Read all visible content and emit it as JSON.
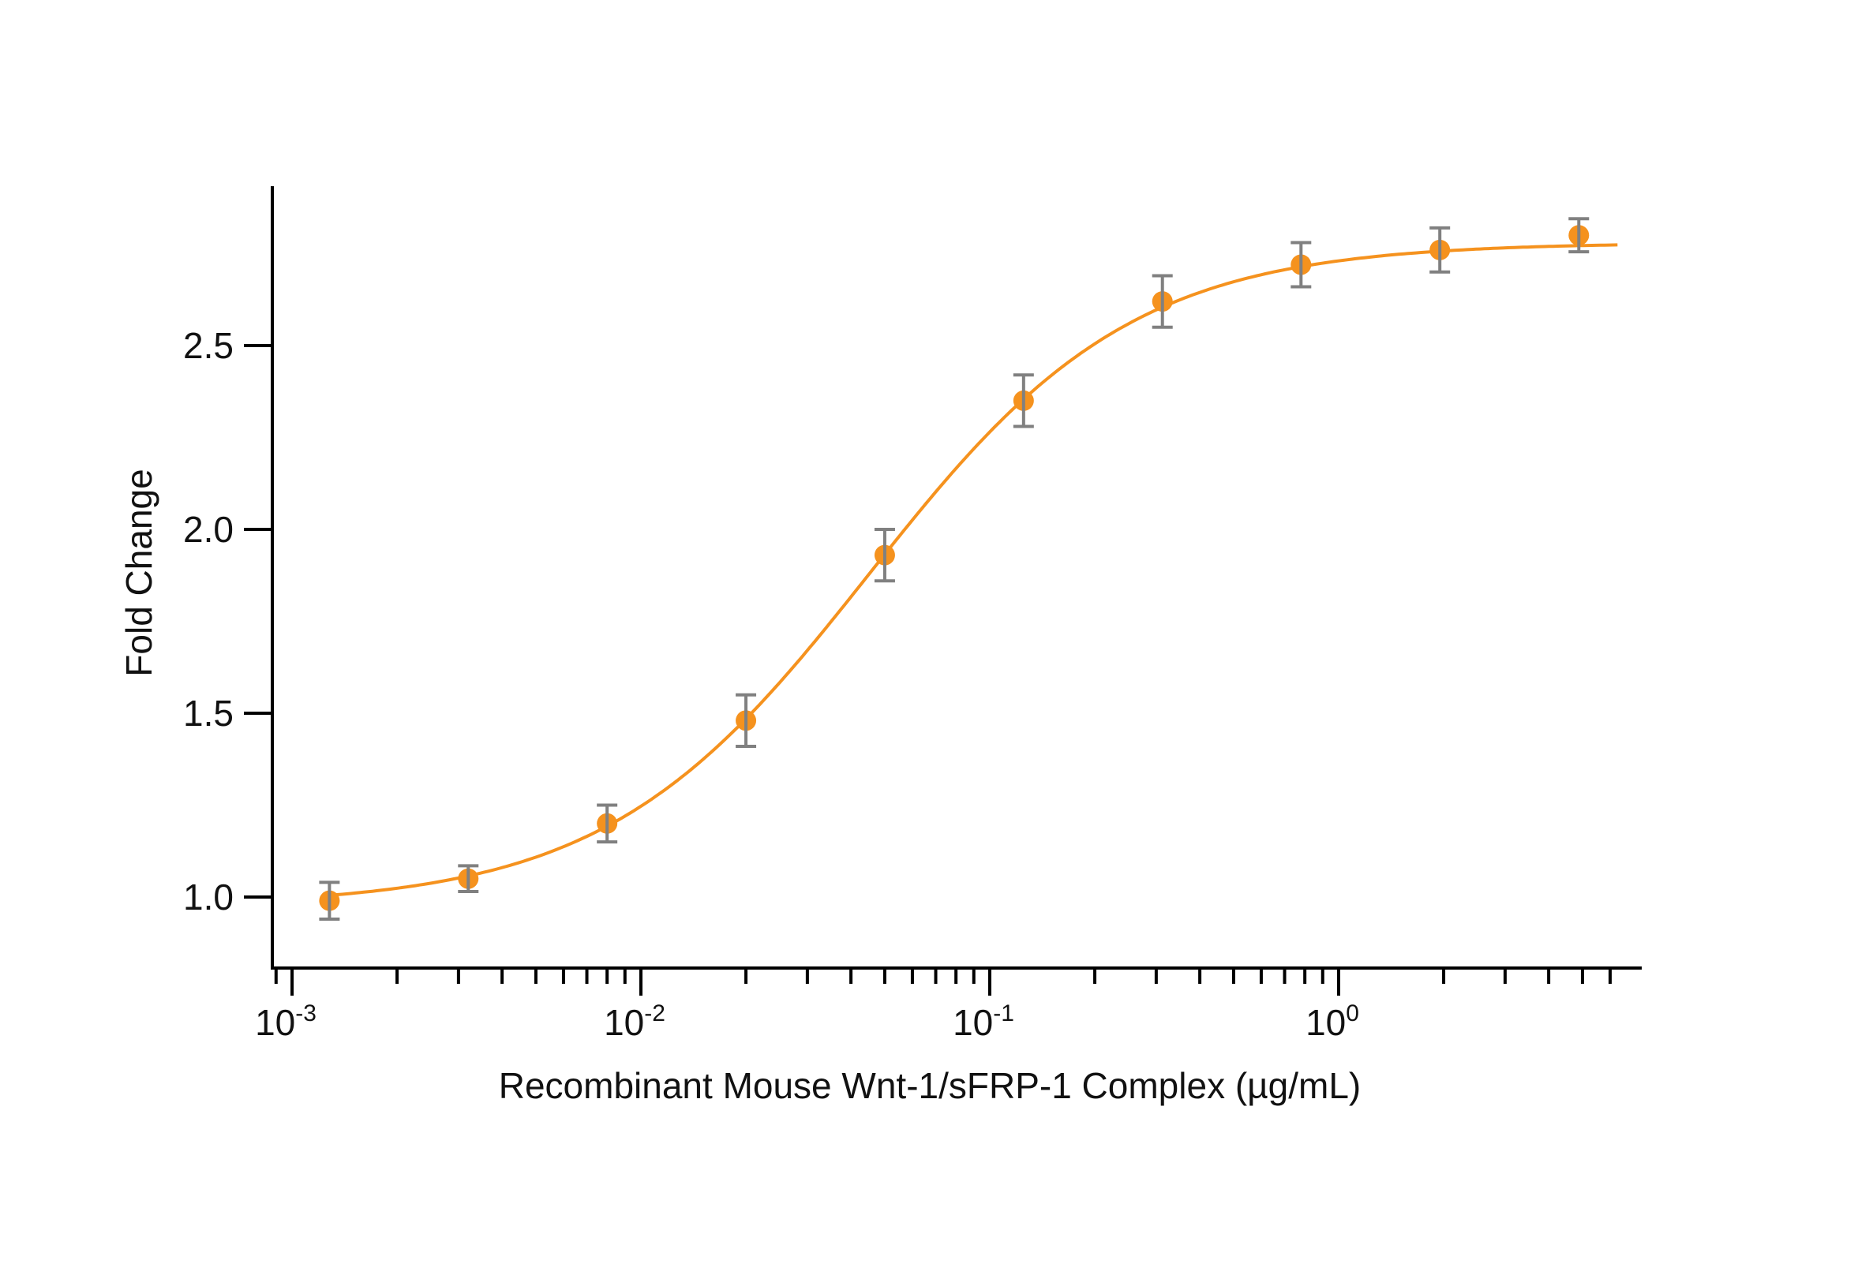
{
  "chart_data": {
    "type": "line",
    "title": "",
    "xlabel": "Recombinant Mouse Wnt-1/sFRP-1 Complex (µg/mL)",
    "ylabel": "Fold Change",
    "x_scale": "log",
    "xlim": [
      0.0009,
      6.5
    ],
    "ylim": [
      0.89,
      2.95
    ],
    "x_ticks": [
      {
        "base": "10",
        "exp": "-3",
        "value": 0.001
      },
      {
        "base": "10",
        "exp": "-2",
        "value": 0.01
      },
      {
        "base": "10",
        "exp": "-1",
        "value": 0.1
      },
      {
        "base": "10",
        "exp": "0",
        "value": 1
      }
    ],
    "y_ticks": [
      "1.0",
      "1.5",
      "2.0",
      "2.5"
    ],
    "y_tick_values": [
      1.0,
      1.5,
      2.0,
      2.5
    ],
    "grid": false,
    "legend": null,
    "series": [
      {
        "name": "Fold Change",
        "color": "#F5921E",
        "marker": "circle",
        "error_bar_color": "#808080",
        "points": [
          {
            "x": 0.00128,
            "y": 0.99,
            "err": 0.05
          },
          {
            "x": 0.0032,
            "y": 1.05,
            "err": 0.035
          },
          {
            "x": 0.008,
            "y": 1.2,
            "err": 0.05
          },
          {
            "x": 0.02,
            "y": 1.48,
            "err": 0.07
          },
          {
            "x": 0.05,
            "y": 1.93,
            "err": 0.07
          },
          {
            "x": 0.125,
            "y": 2.35,
            "err": 0.07
          },
          {
            "x": 0.3125,
            "y": 2.62,
            "err": 0.07
          },
          {
            "x": 0.78,
            "y": 2.72,
            "err": 0.06
          },
          {
            "x": 1.95,
            "y": 2.76,
            "err": 0.06
          },
          {
            "x": 4.88,
            "y": 2.8,
            "err": 0.045
          }
        ],
        "fit_curve": {
          "type": "4PL",
          "bottom": 0.975,
          "top": 2.78,
          "ec50": 0.045,
          "hill": 1.15
        }
      }
    ]
  }
}
